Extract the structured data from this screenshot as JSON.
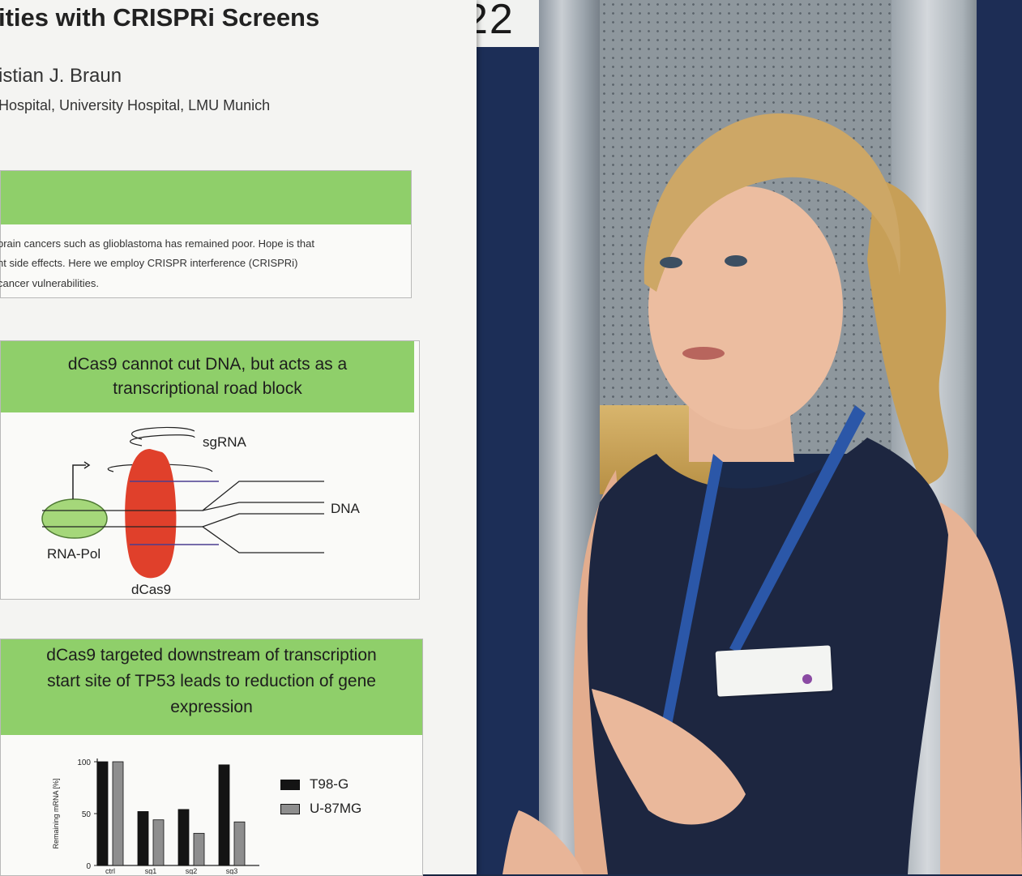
{
  "poster": {
    "title": "ities with CRISPRi Screens",
    "authors": "istian J. Braun",
    "affiliation": "Hospital, University Hospital, LMU Munich",
    "intro_lines": [
      "brain cancers such as glioblastoma has remained poor. Hope is that",
      "nt side effects. Here we employ CRISPR interference (CRISPRi)",
      "cancer vulnerabilities."
    ],
    "dcas9_panel": {
      "heading_line1": "dCas9 cannot cut DNA, but acts as a",
      "heading_line2": "transcriptional road block",
      "label_sgrna": "sgRNA",
      "label_dna": "DNA",
      "label_rnapol": "RNA-Pol",
      "label_dcas9": "dCas9"
    },
    "tp53_panel": {
      "heading_line1": "dCas9 targeted downstream of transcription",
      "heading_line2": "start site of TP53 leads to reduction of gene",
      "heading_line3": "expression"
    }
  },
  "board_number": "22",
  "chart_data": {
    "type": "bar",
    "categories": [
      "ctrl",
      "sg1",
      "sg2",
      "sg3"
    ],
    "series": [
      {
        "name": "T98-G",
        "values": [
          100,
          52,
          54,
          97
        ],
        "color": "#141414"
      },
      {
        "name": "U-87MG",
        "values": [
          100,
          44,
          31,
          42
        ],
        "color": "#8e8e8e"
      }
    ],
    "ylabel": "Remaining mRNA [%]",
    "yticks": [
      "0",
      "50",
      "100"
    ],
    "ylim": [
      0,
      100
    ]
  }
}
